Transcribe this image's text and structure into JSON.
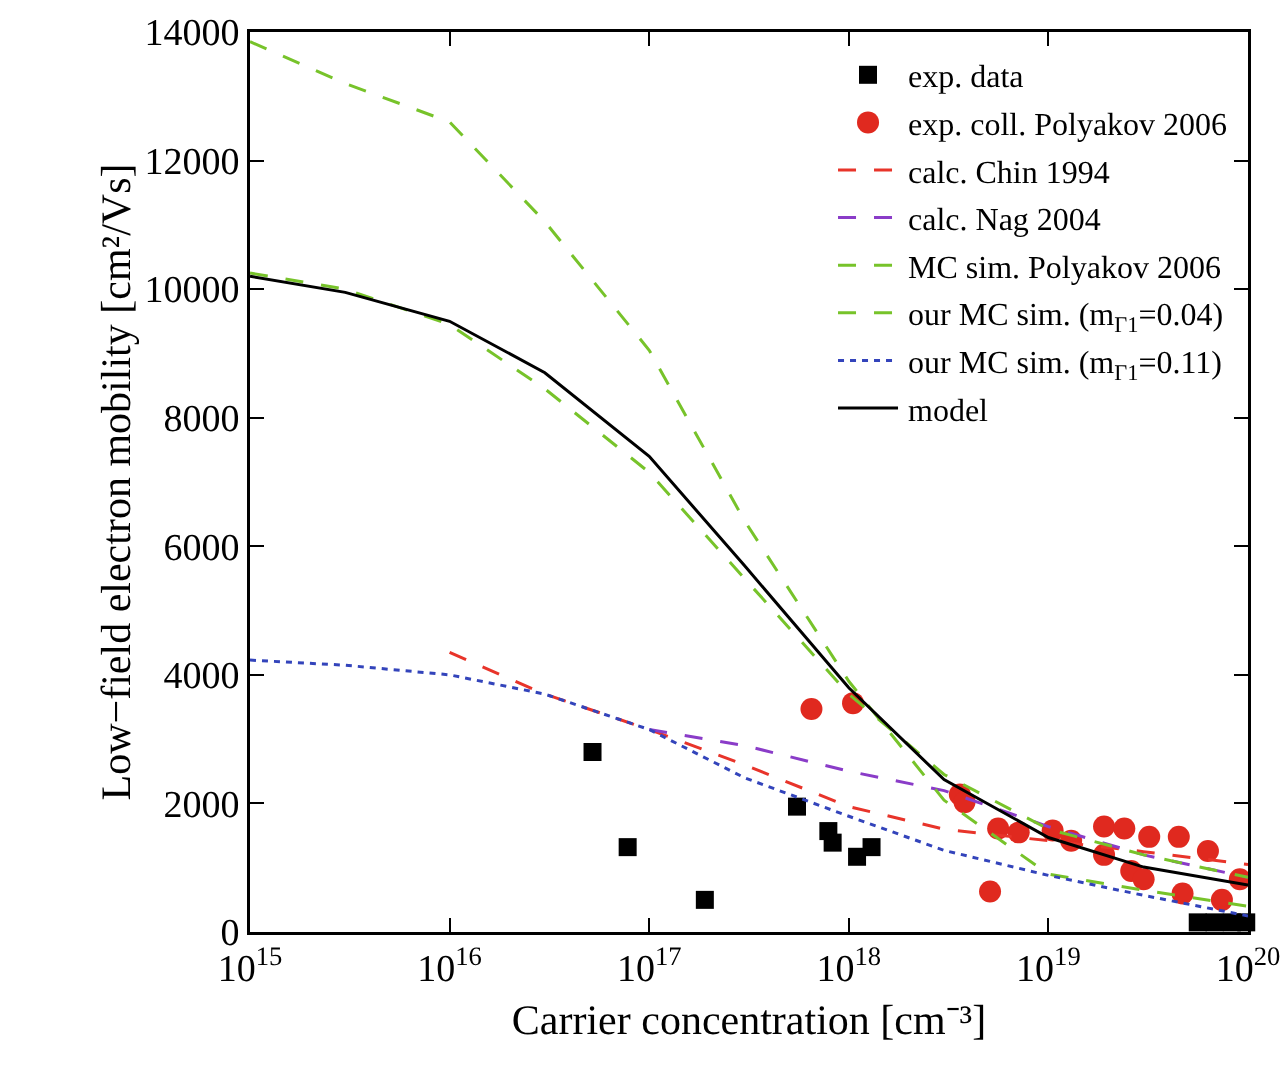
{
  "chart_data": {
    "type": "line",
    "xlabel": "Carrier concentration [cm⁻³]",
    "ylabel": "Low−field electron mobility [cm²/Vs]",
    "log": "x",
    "xlim": [
      1000000000000000.0,
      1e+20
    ],
    "xticks": [
      {
        "value": 1000000000000000.0,
        "label": "10$^{15}$"
      },
      {
        "value": 1e+16,
        "label": "10$^{16}$"
      },
      {
        "value": 1e+17,
        "label": "10$^{17}$"
      },
      {
        "value": 1e+18,
        "label": "10$^{18}$"
      },
      {
        "value": 1e+19,
        "label": "10$^{19}$"
      },
      {
        "value": 1e+20,
        "label": "10$^{20}$"
      }
    ],
    "ylim": [
      0,
      14000
    ],
    "yticks": [
      0,
      2000,
      4000,
      6000,
      8000,
      10000,
      12000,
      14000
    ],
    "grid": false,
    "legend": "top right",
    "series": [
      {
        "name": "exp. data",
        "type": "scatter",
        "marker": "square",
        "color": "#000000",
        "x": [
          5.2e+16,
          7.8e+16,
          1.9e+17,
          5.5e+17,
          7.9e+17,
          8.3e+17,
          1.1e+18,
          1.3e+18,
          5.6e+19,
          6.8e+19,
          8.3e+19,
          9.8e+19
        ],
        "values": [
          2800,
          1320,
          500,
          1950,
          1570,
          1390,
          1170,
          1320,
          150,
          150,
          150,
          150
        ]
      },
      {
        "name": "exp. coll. Polyakov 2006",
        "type": "scatter",
        "marker": "circle",
        "color": "#e0291f",
        "x": [
          6.5e+17,
          1.05e+18,
          3.6e+18,
          3.8e+18,
          5.1e+18,
          5.6e+18,
          7.1e+18,
          1.05e+19,
          1.3e+19,
          1.9e+19,
          1.9e+19,
          2.4e+19,
          2.6e+19,
          3e+19,
          3.2e+19,
          4.5e+19,
          4.7e+19,
          6.3e+19,
          7.4e+19,
          9.1e+19
        ],
        "values": [
          3470,
          3560,
          2140,
          2020,
          630,
          1610,
          1550,
          1580,
          1420,
          1640,
          1200,
          1610,
          950,
          820,
          1480,
          1480,
          600,
          1260,
          500,
          820
        ]
      },
      {
        "name": "calc. Chin 1994",
        "marker": "none",
        "line_style": "dashed",
        "color": "#e8342a",
        "x": [
          1e+16,
          3e+16,
          1e+17,
          3e+17,
          1e+18,
          3e+18,
          1e+19,
          3e+19,
          1e+20
        ],
        "values": [
          4350,
          3700,
          3150,
          2600,
          1950,
          1600,
          1420,
          1250,
          1050
        ]
      },
      {
        "name": "calc. Nag 2004",
        "marker": "none",
        "line_style": "dashed",
        "color": "#8a3cc8",
        "x": [
          1e+17,
          3e+17,
          1e+18,
          3e+18,
          1e+19,
          3e+19,
          1e+20
        ],
        "values": [
          3150,
          2900,
          2500,
          2200,
          1640,
          1200,
          850
        ]
      },
      {
        "name": "MC sim. Polyakov 2006",
        "marker": "none",
        "line_style": "dashed",
        "color": "#77c32a",
        "x": [
          1000000000000000.0,
          3000000000000000.0,
          1e+16,
          3e+16,
          1e+17,
          3e+17,
          1e+18,
          3e+18,
          1e+19,
          3e+19,
          1e+20
        ],
        "values": [
          13850,
          13200,
          12600,
          11050,
          9050,
          6400,
          3900,
          2050,
          900,
          650,
          400
        ]
      },
      {
        "name": "our MC sim. (m$_{Γ1}$=0.04)",
        "marker": "none",
        "line_style": "dashed",
        "color": "#77c32a",
        "x": [
          1000000000000000.0,
          3000000000000000.0,
          1e+16,
          3e+16,
          1e+17,
          3e+17,
          1e+18,
          3e+18,
          1e+19,
          3e+19,
          1e+20
        ],
        "values": [
          10250,
          10000,
          9450,
          8450,
          7150,
          5500,
          3700,
          2450,
          1600,
          1200,
          850
        ]
      },
      {
        "name": "our MC sim. (m$_{Γ1}$=0.11)",
        "marker": "none",
        "line_style": "dotted",
        "color": "#3344bb",
        "x": [
          1000000000000000.0,
          3000000000000000.0,
          1e+16,
          3e+16,
          1e+17,
          3e+17,
          1e+18,
          3e+18,
          1e+19,
          3e+19,
          1e+20
        ],
        "values": [
          4230,
          4150,
          4000,
          3700,
          3150,
          2400,
          1800,
          1270,
          880,
          570,
          250
        ]
      },
      {
        "name": "model",
        "marker": "none",
        "line_style": "solid",
        "color": "#000000",
        "x": [
          1000000000000000.0,
          3000000000000000.0,
          1e+16,
          3e+16,
          1e+17,
          3e+17,
          1e+18,
          3e+18,
          1e+19,
          3e+19,
          1e+20
        ],
        "values": [
          10200,
          9950,
          9500,
          8700,
          7400,
          5700,
          3800,
          2370,
          1470,
          1010,
          730
        ]
      }
    ]
  }
}
